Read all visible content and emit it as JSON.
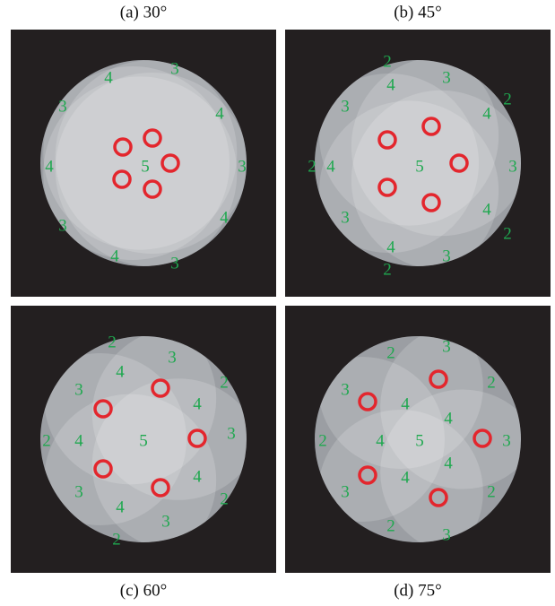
{
  "panels": [
    {
      "caption": "(a) 30°",
      "labels": [
        "4",
        "3",
        "3",
        "4",
        "4",
        "5",
        "3",
        "3",
        "4",
        "4",
        "3"
      ]
    },
    {
      "caption": "(b) 45°",
      "labels": [
        "2",
        "3",
        "4",
        "2",
        "4",
        "3",
        "2",
        "4",
        "5",
        "3",
        "4",
        "3",
        "2",
        "4",
        "3",
        "2"
      ]
    },
    {
      "caption": "(c) 60°",
      "labels": [
        "2",
        "3",
        "4",
        "2",
        "3",
        "4",
        "2",
        "4",
        "5",
        "3",
        "4",
        "3",
        "2",
        "4",
        "3",
        "2"
      ]
    },
    {
      "caption": "(d) 75°",
      "labels": [
        "2",
        "3",
        "3",
        "2",
        "4",
        "4",
        "2",
        "4",
        "5",
        "3",
        "4",
        "4",
        "3",
        "2",
        "2",
        "3"
      ]
    }
  ]
}
